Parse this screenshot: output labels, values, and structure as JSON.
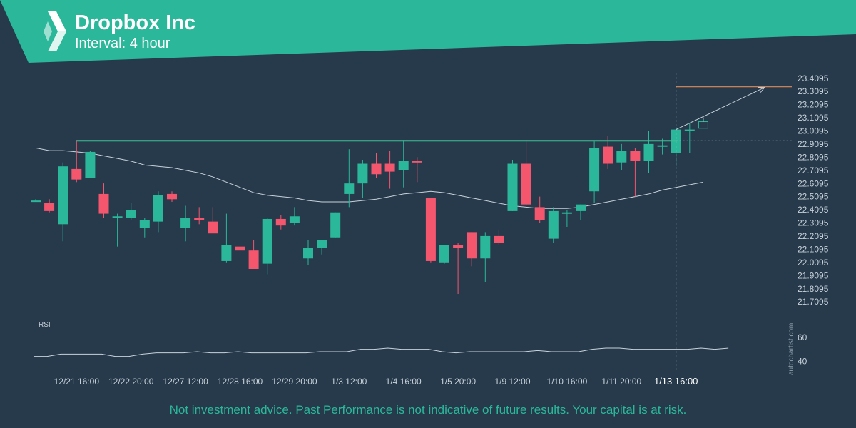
{
  "header": {
    "title": "Dropbox Inc",
    "subtitle": "Interval: 4 hour",
    "logo_icon": "dropbox-diamond-logo-icon",
    "bg_color": "#2bb89a"
  },
  "footer": {
    "disclaimer": "Not investment advice. Past Performance is not indicative of future results. Your capital is at risk.",
    "watermark": "autochartist.com"
  },
  "colors": {
    "background": "#263a4b",
    "up": "#2bb89a",
    "down": "#f4566e",
    "resistance": "#3fbf95",
    "target": "#e08a5a",
    "moving_average": "#c9d2da"
  },
  "chart_data": [
    {
      "type": "candlestick",
      "ylim": [
        21.64,
        23.43
      ],
      "y_ticks": [
        "23.4095",
        "23.3095",
        "23.2095",
        "23.1095",
        "23.0095",
        "22.9095",
        "22.8095",
        "22.7095",
        "22.6095",
        "22.5095",
        "22.4095",
        "22.3095",
        "22.2095",
        "22.1095",
        "22.0095",
        "21.9095",
        "21.8095",
        "21.7095"
      ],
      "x_tick_labels": [
        {
          "label": "12/21 16:00",
          "candle": 3
        },
        {
          "label": "12/22 20:00",
          "candle": 7
        },
        {
          "label": "12/27 12:00",
          "candle": 11
        },
        {
          "label": "12/28 16:00",
          "candle": 15
        },
        {
          "label": "12/29 20:00",
          "candle": 19
        },
        {
          "label": "1/3 12:00",
          "candle": 23
        },
        {
          "label": "1/4 16:00",
          "candle": 27
        },
        {
          "label": "1/5 20:00",
          "candle": 31
        },
        {
          "label": "1/9 12:00",
          "candle": 35
        },
        {
          "label": "1/10 16:00",
          "candle": 39
        },
        {
          "label": "1/11 20:00",
          "candle": 43
        },
        {
          "label": "1/13 16:00",
          "candle": 47
        }
      ],
      "candles": [
        {
          "o": 22.48,
          "h": 22.49,
          "l": 22.47,
          "c": 22.48
        },
        {
          "o": 22.46,
          "h": 22.49,
          "l": 22.39,
          "c": 22.4
        },
        {
          "o": 22.3,
          "h": 22.77,
          "l": 22.17,
          "c": 22.74
        },
        {
          "o": 22.72,
          "h": 22.94,
          "l": 22.62,
          "c": 22.64
        },
        {
          "o": 22.65,
          "h": 22.86,
          "l": 22.65,
          "c": 22.85
        },
        {
          "o": 22.53,
          "h": 22.61,
          "l": 22.35,
          "c": 22.38
        },
        {
          "o": 22.36,
          "h": 22.38,
          "l": 22.13,
          "c": 22.36
        },
        {
          "o": 22.35,
          "h": 22.46,
          "l": 22.33,
          "c": 22.41
        },
        {
          "o": 22.27,
          "h": 22.35,
          "l": 22.2,
          "c": 22.33
        },
        {
          "o": 22.32,
          "h": 22.55,
          "l": 22.24,
          "c": 22.52
        },
        {
          "o": 22.53,
          "h": 22.55,
          "l": 22.47,
          "c": 22.49
        },
        {
          "o": 22.27,
          "h": 22.44,
          "l": 22.17,
          "c": 22.35
        },
        {
          "o": 22.35,
          "h": 22.43,
          "l": 22.3,
          "c": 22.33
        },
        {
          "o": 22.32,
          "h": 22.43,
          "l": 22.23,
          "c": 22.23
        },
        {
          "o": 22.02,
          "h": 22.38,
          "l": 22.01,
          "c": 22.14
        },
        {
          "o": 22.13,
          "h": 22.17,
          "l": 22.09,
          "c": 22.1
        },
        {
          "o": 22.1,
          "h": 22.18,
          "l": 21.96,
          "c": 21.96
        },
        {
          "o": 22.0,
          "h": 22.35,
          "l": 21.92,
          "c": 22.34
        },
        {
          "o": 22.34,
          "h": 22.37,
          "l": 22.26,
          "c": 22.29
        },
        {
          "o": 22.31,
          "h": 22.43,
          "l": 22.29,
          "c": 22.36
        },
        {
          "o": 22.04,
          "h": 22.18,
          "l": 21.99,
          "c": 22.12
        },
        {
          "o": 22.12,
          "h": 22.18,
          "l": 22.07,
          "c": 22.18
        },
        {
          "o": 22.2,
          "h": 22.39,
          "l": 22.2,
          "c": 22.39
        },
        {
          "o": 22.53,
          "h": 22.87,
          "l": 22.43,
          "c": 22.61
        },
        {
          "o": 22.61,
          "h": 22.79,
          "l": 22.5,
          "c": 22.76
        },
        {
          "o": 22.76,
          "h": 22.84,
          "l": 22.65,
          "c": 22.68
        },
        {
          "o": 22.76,
          "h": 22.86,
          "l": 22.57,
          "c": 22.7
        },
        {
          "o": 22.71,
          "h": 22.94,
          "l": 22.58,
          "c": 22.78
        },
        {
          "o": 22.78,
          "h": 22.81,
          "l": 22.62,
          "c": 22.77
        },
        {
          "o": 22.5,
          "h": 22.5,
          "l": 22.01,
          "c": 22.02
        },
        {
          "o": 22.01,
          "h": 22.14,
          "l": 22.0,
          "c": 22.14
        },
        {
          "o": 22.14,
          "h": 22.16,
          "l": 21.77,
          "c": 22.12
        },
        {
          "o": 22.24,
          "h": 22.24,
          "l": 21.98,
          "c": 22.04
        },
        {
          "o": 22.04,
          "h": 22.24,
          "l": 21.86,
          "c": 22.21
        },
        {
          "o": 22.21,
          "h": 22.26,
          "l": 22.14,
          "c": 22.16
        },
        {
          "o": 22.4,
          "h": 22.79,
          "l": 22.4,
          "c": 22.76
        },
        {
          "o": 22.76,
          "h": 22.94,
          "l": 22.44,
          "c": 22.45
        },
        {
          "o": 22.43,
          "h": 22.51,
          "l": 22.31,
          "c": 22.33
        },
        {
          "o": 22.19,
          "h": 22.43,
          "l": 22.16,
          "c": 22.4
        },
        {
          "o": 22.39,
          "h": 22.41,
          "l": 22.28,
          "c": 22.39
        },
        {
          "o": 22.4,
          "h": 22.45,
          "l": 22.33,
          "c": 22.45
        },
        {
          "o": 22.55,
          "h": 22.93,
          "l": 22.46,
          "c": 22.88
        },
        {
          "o": 22.89,
          "h": 22.97,
          "l": 22.72,
          "c": 22.76
        },
        {
          "o": 22.77,
          "h": 22.91,
          "l": 22.71,
          "c": 22.86
        },
        {
          "o": 22.86,
          "h": 22.88,
          "l": 22.51,
          "c": 22.78
        },
        {
          "o": 22.78,
          "h": 23.01,
          "l": 22.69,
          "c": 22.91
        },
        {
          "o": 22.9,
          "h": 22.95,
          "l": 22.83,
          "c": 22.9
        },
        {
          "o": 22.84,
          "h": 23.04,
          "l": 22.74,
          "c": 23.02
        },
        {
          "o": 23.02,
          "h": 23.07,
          "l": 22.84,
          "c": 23.02
        },
        {
          "o": 23.03,
          "h": 23.08,
          "l": 23.03,
          "c": 23.08,
          "projected": true
        }
      ],
      "moving_average": [
        22.88,
        22.86,
        22.86,
        22.85,
        22.84,
        22.82,
        22.8,
        22.78,
        22.75,
        22.74,
        22.73,
        22.71,
        22.69,
        22.66,
        22.62,
        22.58,
        22.54,
        22.52,
        22.51,
        22.5,
        22.48,
        22.47,
        22.47,
        22.47,
        22.48,
        22.49,
        22.51,
        22.53,
        22.54,
        22.55,
        22.54,
        22.52,
        22.5,
        22.48,
        22.46,
        22.44,
        22.43,
        22.42,
        22.42,
        22.42,
        22.43,
        22.45,
        22.47,
        22.49,
        22.51,
        22.53,
        22.56,
        22.58,
        22.6,
        22.62
      ],
      "resistance_level": 22.935,
      "target_level": 23.345,
      "pattern_start_candle": 3,
      "current_candle": 47,
      "projection_arrow": {
        "from_candle": 47,
        "from_value": 23.02,
        "to_candle": 53.5,
        "to_value": 23.34
      }
    },
    {
      "type": "line",
      "indicator_label": "RSI",
      "y_ticks": [
        "60",
        "40"
      ],
      "ylim": [
        36,
        66
      ],
      "values": [
        44,
        44,
        46,
        46,
        46,
        46,
        44,
        44,
        46,
        47,
        47,
        47,
        48,
        47,
        47,
        48,
        47,
        47,
        47,
        47,
        47,
        48,
        48,
        48,
        50,
        50,
        51,
        50,
        50,
        50,
        48,
        47,
        48,
        48,
        48,
        48,
        48,
        49,
        48,
        48,
        48,
        50,
        51,
        51,
        50,
        50,
        50,
        50,
        50,
        51,
        50,
        51
      ]
    }
  ]
}
